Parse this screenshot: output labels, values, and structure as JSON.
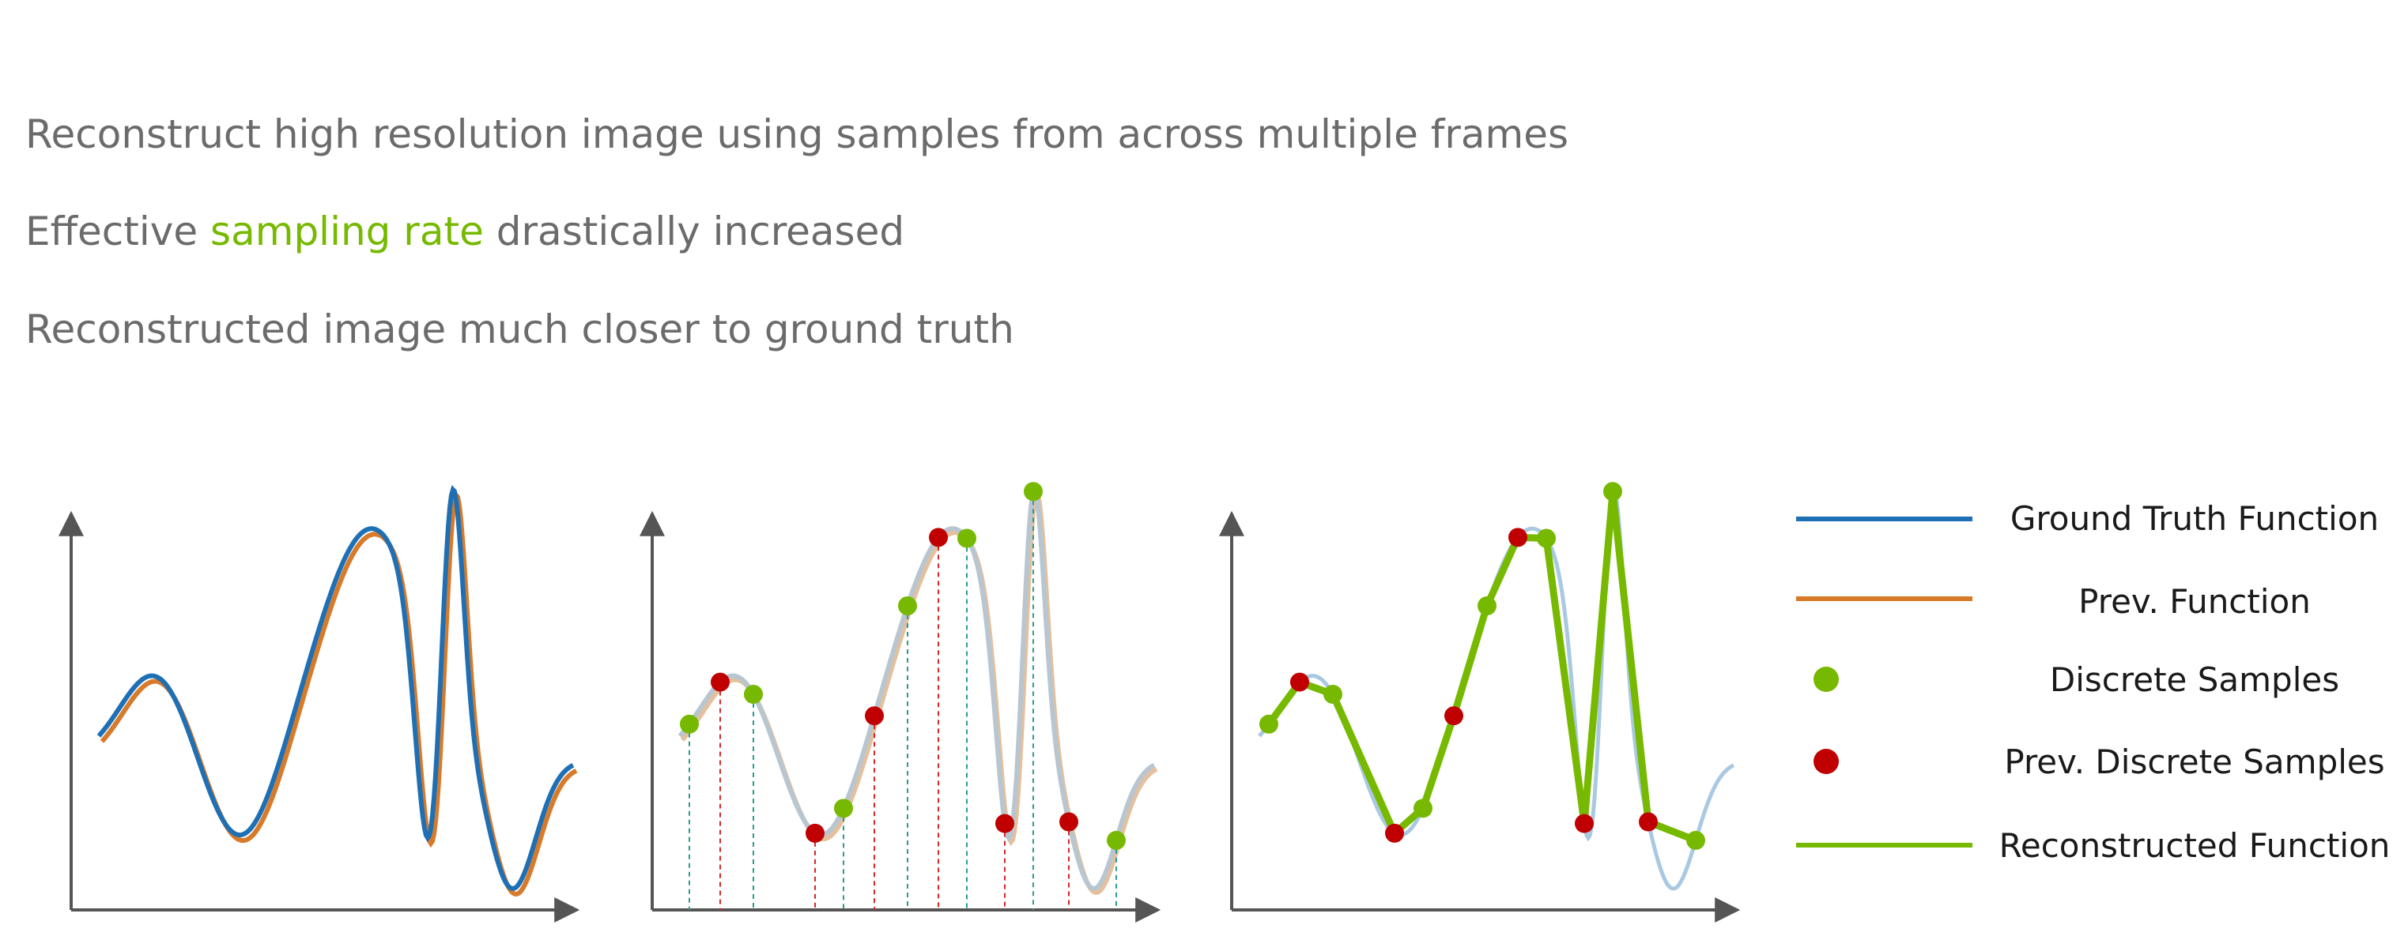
{
  "bullets": [
    {
      "text": "Reconstruct high resolution image using samples from across multiple frames"
    },
    {
      "before": "Effective ",
      "highlight": "sampling rate",
      "after": " drastically increased"
    },
    {
      "text": "Reconstructed image much closer to ground truth"
    }
  ],
  "legend": {
    "ground_truth": "Ground Truth Function",
    "prev_function": "Prev. Function",
    "discrete_samples": "Discrete Samples",
    "prev_discrete_samples": "Prev. Discrete Samples",
    "reconstructed": "Reconstructed Function"
  },
  "colors": {
    "ground_truth": "#1f6fb4",
    "prev_function": "#d77a2a",
    "discrete_sample": "#76b900",
    "prev_discrete_sample": "#c00000",
    "reconstructed": "#76b900",
    "faint_curve": "#a9c9e2",
    "axis": "#555555"
  },
  "panels": [
    "ground-truth-vs-previous",
    "samples-overlay",
    "reconstruction"
  ]
}
